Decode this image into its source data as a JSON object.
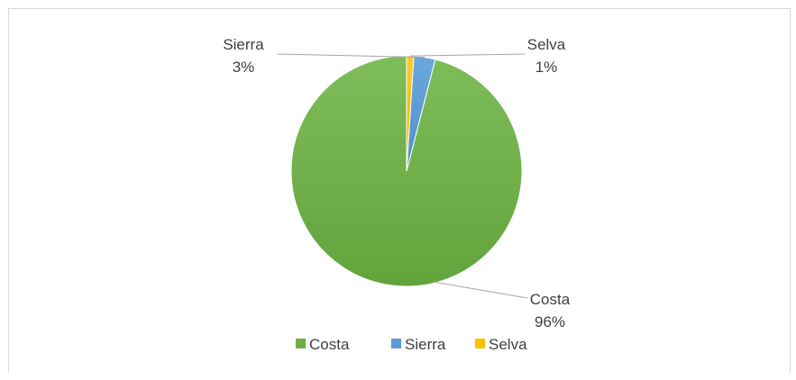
{
  "chart_data": {
    "type": "pie",
    "title": "",
    "categories": [
      "Costa",
      "Sierra",
      "Selva"
    ],
    "values": [
      96,
      3,
      1
    ],
    "value_labels": [
      "96%",
      "3%",
      "1%"
    ],
    "colors": [
      "#70ad47",
      "#5b9bd5",
      "#ffc000"
    ],
    "start_angle_deg": 0,
    "direction": "counterclockwise",
    "legend": {
      "position": "bottom",
      "items": [
        "Costa",
        "Sierra",
        "Selva"
      ]
    }
  }
}
